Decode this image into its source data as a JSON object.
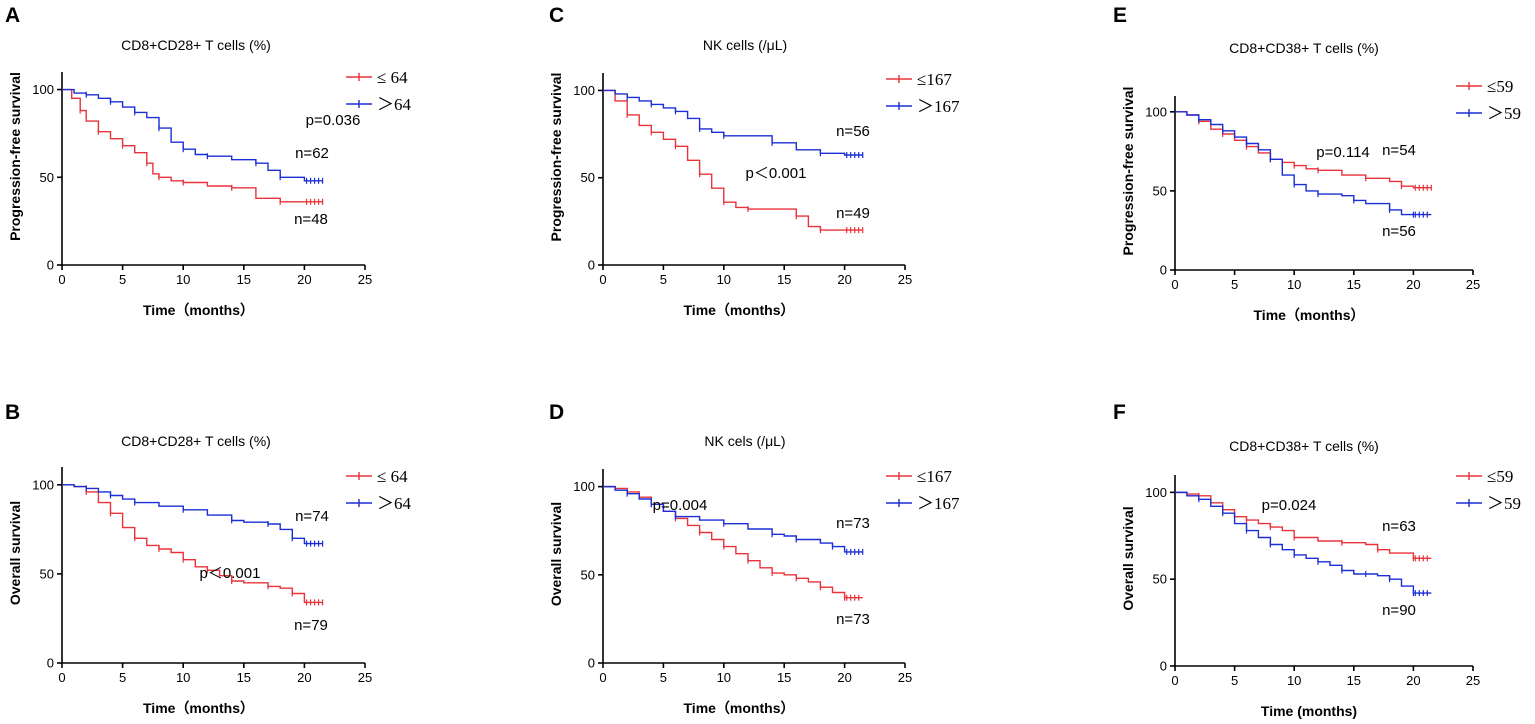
{
  "chart_data": [
    {
      "panel": "A",
      "type": "line",
      "title": "CD8+CD28+ T cells (%)",
      "xlabel": "Time（months）",
      "ylabel": "Progression-free survival",
      "xlim": [
        0,
        25
      ],
      "ylim": [
        0,
        110
      ],
      "xticks": [
        0,
        5,
        10,
        15,
        20,
        25
      ],
      "yticks": [
        0,
        50,
        100
      ],
      "legend": [
        "≤ 64",
        "＞64"
      ],
      "annotations": {
        "p": "p=0.036",
        "n_high": "n=62",
        "n_low": "n=48"
      },
      "series": [
        {
          "name": "≤ 64",
          "color": "#e8333a",
          "x": [
            0,
            0.8,
            1.5,
            2,
            3,
            4,
            5,
            6,
            7,
            7.5,
            8,
            9,
            10,
            12,
            14,
            16,
            18,
            20,
            21.5
          ],
          "y": [
            100,
            95,
            88,
            82,
            76,
            72,
            68,
            64,
            58,
            52,
            50,
            48,
            47,
            45,
            44,
            38,
            36,
            36,
            36
          ]
        },
        {
          "name": "＞64",
          "color": "#1a2fd6",
          "x": [
            0,
            1,
            2,
            3,
            4,
            5,
            6,
            7,
            8,
            9,
            10,
            11,
            12,
            14,
            16,
            17,
            18,
            20,
            21.5
          ],
          "y": [
            100,
            98,
            97,
            95,
            93,
            90,
            87,
            84,
            78,
            70,
            66,
            63,
            62,
            60,
            58,
            54,
            50,
            48,
            48
          ]
        }
      ]
    },
    {
      "panel": "B",
      "type": "line",
      "title": "CD8+CD28+ T cells (%)",
      "xlabel": "Time（months）",
      "ylabel": "Overall survival",
      "xlim": [
        0,
        25
      ],
      "ylim": [
        0,
        110
      ],
      "xticks": [
        0,
        5,
        10,
        15,
        20,
        25
      ],
      "yticks": [
        0,
        50,
        100
      ],
      "legend": [
        "≤ 64",
        "＞64"
      ],
      "annotations": {
        "p": "p＜0.001",
        "n_high": "n=74",
        "n_low": "n=79"
      },
      "series": [
        {
          "name": "≤ 64",
          "color": "#e8333a",
          "x": [
            0,
            1,
            2,
            3,
            4,
            5,
            6,
            7,
            8,
            9,
            10,
            11,
            12,
            13,
            14,
            15,
            17,
            18,
            19,
            20,
            21.5
          ],
          "y": [
            100,
            99,
            96,
            90,
            84,
            76,
            70,
            66,
            64,
            62,
            58,
            54,
            52,
            49,
            46,
            45,
            43,
            42,
            39,
            34,
            34
          ]
        },
        {
          "name": "＞64",
          "color": "#1a2fd6",
          "x": [
            0,
            1,
            2,
            3,
            4,
            5,
            6,
            8,
            10,
            12,
            14,
            15,
            17,
            18,
            19,
            20,
            21.5
          ],
          "y": [
            100,
            99,
            98,
            96,
            94,
            92,
            90,
            88,
            86,
            83,
            80,
            79,
            78,
            75,
            70,
            67,
            67
          ]
        }
      ]
    },
    {
      "panel": "C",
      "type": "line",
      "title": "NK cells (/μL)",
      "xlabel": "Time（months）",
      "ylabel": "Progression-free survival",
      "xlim": [
        0,
        25
      ],
      "ylim": [
        0,
        110
      ],
      "xticks": [
        0,
        5,
        10,
        15,
        20,
        25
      ],
      "yticks": [
        0,
        50,
        100
      ],
      "legend": [
        "≤167",
        "＞167"
      ],
      "annotations": {
        "p": "p＜0.001",
        "n_high": "n=56",
        "n_low": "n=49"
      },
      "series": [
        {
          "name": "≤167",
          "color": "#e8333a",
          "x": [
            0,
            1,
            2,
            3,
            4,
            5,
            6,
            7,
            8,
            9,
            10,
            11,
            12,
            14,
            16,
            17,
            18,
            20,
            21.5
          ],
          "y": [
            100,
            94,
            86,
            80,
            76,
            72,
            68,
            60,
            52,
            44,
            36,
            33,
            32,
            32,
            28,
            22,
            20,
            20,
            20
          ]
        },
        {
          "name": "＞167",
          "color": "#1a2fd6",
          "x": [
            0,
            1,
            2,
            3,
            4,
            5,
            6,
            7,
            8,
            9,
            10,
            12,
            14,
            16,
            18,
            20,
            21.5
          ],
          "y": [
            100,
            98,
            96,
            94,
            92,
            90,
            88,
            84,
            78,
            76,
            74,
            74,
            70,
            66,
            64,
            63,
            63
          ]
        }
      ]
    },
    {
      "panel": "D",
      "type": "line",
      "title": "NK cels (/μL)",
      "xlabel": "Time（months）",
      "ylabel": "Overall survival",
      "xlim": [
        0,
        25
      ],
      "ylim": [
        0,
        110
      ],
      "xticks": [
        0,
        5,
        10,
        15,
        20,
        25
      ],
      "yticks": [
        0,
        50,
        100
      ],
      "legend": [
        "≤167",
        "＞167"
      ],
      "annotations": {
        "p": "p=0.004",
        "n_high": "n=73",
        "n_low": "n=73"
      },
      "series": [
        {
          "name": "≤167",
          "color": "#e8333a",
          "x": [
            0,
            1,
            2,
            3,
            4,
            5,
            6,
            7,
            8,
            9,
            10,
            11,
            12,
            13,
            14,
            15,
            16,
            17,
            18,
            19,
            20,
            21.5
          ],
          "y": [
            100,
            99,
            97,
            94,
            90,
            86,
            82,
            78,
            74,
            70,
            66,
            62,
            58,
            54,
            51,
            50,
            48,
            46,
            43,
            40,
            37,
            37
          ]
        },
        {
          "name": "＞167",
          "color": "#1a2fd6",
          "x": [
            0,
            1,
            2,
            3,
            4,
            5,
            6,
            8,
            10,
            12,
            14,
            15,
            16,
            18,
            19,
            20,
            21.5
          ],
          "y": [
            100,
            98,
            96,
            93,
            90,
            86,
            83,
            81,
            79,
            76,
            73,
            72,
            70,
            68,
            66,
            63,
            63
          ]
        }
      ]
    },
    {
      "panel": "E",
      "type": "line",
      "title": "CD8+CD38+ T cells (%)",
      "xlabel": "Time（months）",
      "ylabel": "Progression-free survival",
      "xlim": [
        0,
        25
      ],
      "ylim": [
        0,
        110
      ],
      "xticks": [
        0,
        5,
        10,
        15,
        20,
        25
      ],
      "yticks": [
        0,
        50,
        100
      ],
      "legend": [
        "≤59",
        "＞59"
      ],
      "annotations": {
        "p": "p=0.114",
        "n_high": "n=54",
        "n_low": "n=56"
      },
      "series": [
        {
          "name": "≤59",
          "color": "#e8333a",
          "x": [
            0,
            1,
            2,
            3,
            4,
            5,
            6,
            7,
            8,
            9,
            10,
            11,
            12,
            14,
            16,
            18,
            19,
            20,
            21.5
          ],
          "y": [
            100,
            98,
            94,
            89,
            86,
            82,
            78,
            74,
            70,
            68,
            66,
            64,
            63,
            60,
            58,
            56,
            53,
            52,
            52
          ]
        },
        {
          "name": "＞59",
          "color": "#1a2fd6",
          "x": [
            0,
            1,
            2,
            3,
            4,
            5,
            6,
            7,
            8,
            9,
            10,
            11,
            12,
            14,
            15,
            16,
            18,
            19,
            20,
            21.5
          ],
          "y": [
            100,
            98,
            95,
            92,
            88,
            84,
            80,
            76,
            70,
            60,
            54,
            50,
            48,
            47,
            44,
            42,
            38,
            35,
            35,
            35
          ]
        }
      ]
    },
    {
      "panel": "F",
      "type": "line",
      "title": "CD8+CD38+ T cells (%)",
      "xlabel": "Time (months)",
      "ylabel": "Overall survival",
      "xlim": [
        0,
        25
      ],
      "ylim": [
        0,
        110
      ],
      "xticks": [
        0,
        5,
        10,
        15,
        20,
        25
      ],
      "yticks": [
        0,
        50,
        100
      ],
      "legend": [
        "≤59",
        "＞59"
      ],
      "annotations": {
        "p": "p=0.024",
        "n_high": "n=63",
        "n_low": "n=90"
      },
      "series": [
        {
          "name": "≤59",
          "color": "#e8333a",
          "x": [
            0,
            1,
            2,
            3,
            4,
            5,
            6,
            7,
            8,
            9,
            10,
            12,
            14,
            16,
            17,
            18,
            20,
            21.5
          ],
          "y": [
            100,
            99,
            98,
            94,
            90,
            86,
            84,
            82,
            80,
            78,
            74,
            72,
            71,
            70,
            67,
            65,
            62,
            62
          ]
        },
        {
          "name": "＞59",
          "color": "#1a2fd6",
          "x": [
            0,
            1,
            2,
            3,
            4,
            5,
            6,
            7,
            8,
            9,
            10,
            11,
            12,
            13,
            14,
            15,
            16,
            17,
            18,
            19,
            20,
            21.5
          ],
          "y": [
            100,
            98,
            96,
            92,
            88,
            82,
            78,
            74,
            70,
            67,
            64,
            62,
            60,
            58,
            55,
            53,
            53,
            52,
            50,
            46,
            42,
            42
          ]
        }
      ]
    }
  ]
}
